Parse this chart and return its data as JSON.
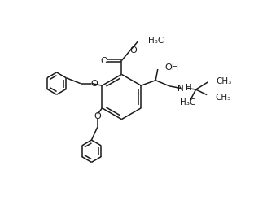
{
  "bg_color": "#ffffff",
  "line_color": "#1a1a1a",
  "line_width": 1.1,
  "figsize": [
    3.28,
    2.53
  ],
  "dpi": 100,
  "xlim": [
    0,
    10
  ],
  "ylim": [
    0,
    7.7
  ]
}
